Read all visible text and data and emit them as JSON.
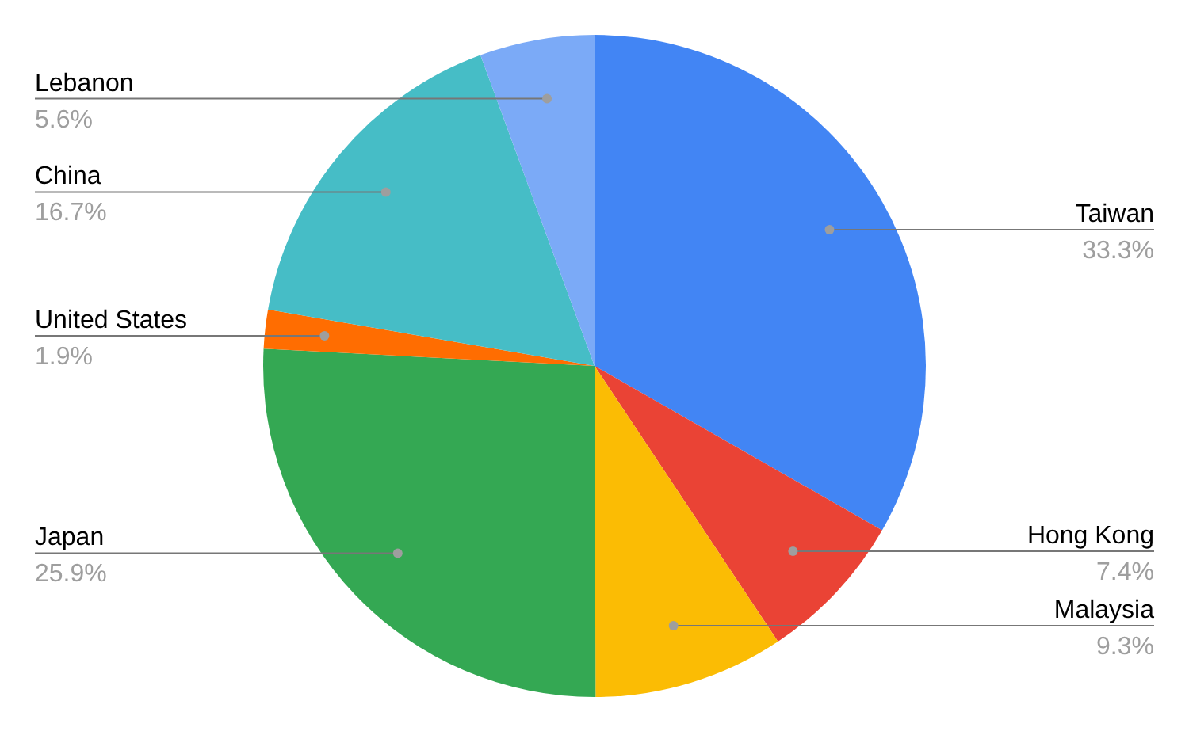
{
  "chart_data": {
    "type": "pie",
    "categories": [
      "Taiwan",
      "Hong Kong",
      "Malaysia",
      "Japan",
      "United States",
      "China",
      "Lebanon"
    ],
    "values": [
      33.3,
      7.4,
      9.3,
      25.9,
      1.9,
      16.7,
      5.6
    ],
    "colors": [
      "#4285f4",
      "#ea4335",
      "#fbbc04",
      "#34a853",
      "#ff6d01",
      "#46bdc6",
      "#7baaf7"
    ],
    "value_labels": [
      "33.3%",
      "7.4%",
      "9.3%",
      "25.9%",
      "1.9%",
      "16.7%",
      "5.6%"
    ],
    "legend": false
  }
}
